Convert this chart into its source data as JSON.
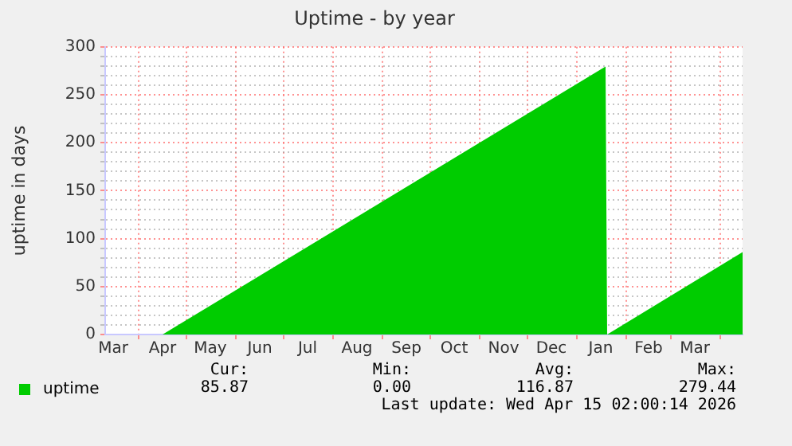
{
  "chart_data": {
    "type": "area",
    "title": "Uptime - by year",
    "ylabel": "uptime in days",
    "x": [
      "2025-03-11",
      "2025-04-16",
      "2026-01-19",
      "2026-01-20",
      "2026-04-15"
    ],
    "series": [
      {
        "name": "uptime",
        "color": "#00cc00",
        "values": [
          0,
          0,
          279.44,
          0,
          85.87
        ]
      }
    ],
    "xlim": [
      "2025-03-11",
      "2026-04-15"
    ],
    "xticks": [
      {
        "value": "2025-03-16",
        "label": "Mar"
      },
      {
        "value": "2025-04-01",
        "label": null
      },
      {
        "value": "2025-04-16",
        "label": "Apr"
      },
      {
        "value": "2025-05-01",
        "label": null
      },
      {
        "value": "2025-05-16",
        "label": "May"
      },
      {
        "value": "2025-06-01",
        "label": null
      },
      {
        "value": "2025-06-16",
        "label": "Jun"
      },
      {
        "value": "2025-07-01",
        "label": null
      },
      {
        "value": "2025-07-16",
        "label": "Jul"
      },
      {
        "value": "2025-08-01",
        "label": null
      },
      {
        "value": "2025-08-16",
        "label": "Aug"
      },
      {
        "value": "2025-09-01",
        "label": null
      },
      {
        "value": "2025-09-16",
        "label": "Sep"
      },
      {
        "value": "2025-10-01",
        "label": null
      },
      {
        "value": "2025-10-16",
        "label": "Oct"
      },
      {
        "value": "2025-11-01",
        "label": null
      },
      {
        "value": "2025-11-16",
        "label": "Nov"
      },
      {
        "value": "2025-12-01",
        "label": null
      },
      {
        "value": "2025-12-16",
        "label": "Dec"
      },
      {
        "value": "2026-01-01",
        "label": null
      },
      {
        "value": "2026-01-16",
        "label": "Jan"
      },
      {
        "value": "2026-02-01",
        "label": null
      },
      {
        "value": "2026-02-15",
        "label": "Feb"
      },
      {
        "value": "2026-03-01",
        "label": null
      },
      {
        "value": "2026-03-16",
        "label": "Mar"
      },
      {
        "value": "2026-04-01",
        "label": null
      }
    ],
    "ylim": [
      0,
      300
    ],
    "yticks": [
      0,
      {
        "value": 10,
        "label": null
      },
      {
        "value": 20,
        "label": null
      },
      {
        "value": 30,
        "label": null
      },
      {
        "value": 40,
        "label": null
      },
      50,
      {
        "value": 60,
        "label": null
      },
      {
        "value": 70,
        "label": null
      },
      {
        "value": 80,
        "label": null
      },
      {
        "value": 90,
        "label": null
      },
      100,
      {
        "value": 110,
        "label": null
      },
      {
        "value": 120,
        "label": null
      },
      {
        "value": 130,
        "label": null
      },
      {
        "value": 140,
        "label": null
      },
      150,
      {
        "value": 160,
        "label": null
      },
      {
        "value": 170,
        "label": null
      },
      {
        "value": 180,
        "label": null
      },
      {
        "value": 190,
        "label": null
      },
      200,
      {
        "value": 210,
        "label": null
      },
      {
        "value": 220,
        "label": null
      },
      {
        "value": 230,
        "label": null
      },
      {
        "value": 240,
        "label": null
      },
      250,
      {
        "value": 260,
        "label": null
      },
      {
        "value": 270,
        "label": null
      },
      {
        "value": 280,
        "label": null
      },
      {
        "value": 290,
        "label": null
      },
      300
    ],
    "grid": true,
    "legend": "bottom left",
    "annotations": [
      "Cur:",
      "Min:",
      "Avg:",
      "Max:",
      "85.87",
      "0.00",
      "116.87",
      "279.44",
      "Last update: Wed Apr 15 02:00:14 2026"
    ]
  }
}
